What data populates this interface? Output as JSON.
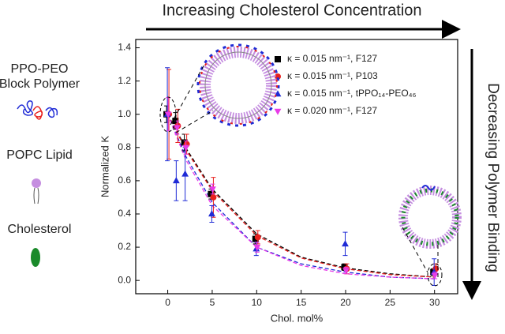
{
  "chart_data": {
    "type": "scatter",
    "title": "Increasing Cholesterol Concentration",
    "side_title": "Decreasing Polymer Binding",
    "x_label": "Chol. mol%",
    "y_label": "Normalized K",
    "annotations": [
      "PPO-PEO",
      "Block Polymer",
      "POPC Lipid",
      "Cholesterol"
    ],
    "xlim": [
      -3.6,
      32.6
    ],
    "xticks": [
      0,
      5,
      10,
      15,
      20,
      25,
      30
    ],
    "ylim": [
      -0.08,
      1.45
    ],
    "yticks": [
      {
        "value": 0,
        "label": "0.0"
      },
      0.2,
      0.4,
      0.6,
      0.8,
      {
        "value": 1,
        "label": "1.0"
      },
      1.2,
      1.4
    ],
    "x": [
      0,
      1,
      2,
      5,
      10,
      20,
      30
    ],
    "series": [
      {
        "name": "κ = 0.015 nm⁻¹, F127",
        "color": "#000000",
        "marker": "square",
        "values": [
          1.0,
          0.96,
          0.83,
          0.52,
          0.25,
          0.08,
          0.05
        ],
        "errors": [
          0.05,
          0.05,
          0.05,
          0.03,
          0.03,
          0.02,
          0.02
        ]
      },
      {
        "name": "κ = 0.015 nm⁻¹, P103",
        "color": "#e8201e",
        "marker": "circle",
        "values": [
          1.0,
          0.93,
          0.82,
          0.5,
          0.26,
          0.07,
          0.07
        ],
        "errors": [
          0.27,
          0.1,
          0.06,
          0.12,
          0.04,
          0.03,
          0.03
        ]
      },
      {
        "name": "κ = 0.015 nm⁻¹, tPPO₁₄-PEO₄₆",
        "color": "#1f2bd6",
        "marker": "triangle-up",
        "values": [
          1.0,
          0.6,
          0.64,
          0.4,
          0.19,
          0.22,
          0.05
        ],
        "errors": [
          0.28,
          0.12,
          0.16,
          0.05,
          0.04,
          0.07,
          0.08
        ]
      },
      {
        "name": "κ = 0.020 nm⁻¹, F127",
        "color": "#e83be8",
        "marker": "triangle-down",
        "values": [
          1.0,
          0.92,
          0.8,
          0.55,
          0.2,
          0.06,
          0.03
        ],
        "errors": [
          0.1,
          0.04,
          0.04,
          0.03,
          0.03,
          0.02,
          0.02
        ]
      }
    ],
    "fit_x": [
      0,
      2,
      5,
      10,
      15,
      20,
      25,
      30
    ],
    "fits": [
      {
        "color": "#000000",
        "values": [
          1.0,
          0.8,
          0.55,
          0.28,
          0.14,
          0.075,
          0.04,
          0.02
        ]
      },
      {
        "color": "#e8201e",
        "values": [
          1.0,
          0.79,
          0.54,
          0.27,
          0.135,
          0.07,
          0.035,
          0.02
        ]
      },
      {
        "color": "#1f2bd6",
        "values": [
          1.0,
          0.75,
          0.47,
          0.2,
          0.1,
          0.05,
          0.02,
          0.01
        ]
      },
      {
        "color": "#e83be8",
        "values": [
          1.0,
          0.73,
          0.45,
          0.2,
          0.09,
          0.04,
          0.02,
          0.01
        ]
      }
    ]
  }
}
